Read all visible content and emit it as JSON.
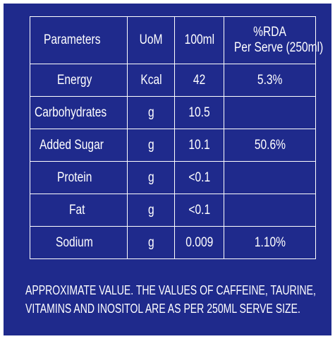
{
  "table": {
    "headers": {
      "parameters": "Parameters",
      "uom": "UoM",
      "per100ml": "100ml",
      "rda_line1": "%RDA",
      "rda_line2": "Per Serve (250ml)"
    },
    "rows": [
      {
        "parameter": "Energy",
        "uom": "Kcal",
        "per100ml": "42",
        "rda": "5.3%"
      },
      {
        "parameter": "Carbohydrates",
        "uom": "g",
        "per100ml": "10.5",
        "rda": ""
      },
      {
        "parameter": "Added Sugar",
        "uom": "g",
        "per100ml": "10.1",
        "rda": "50.6%"
      },
      {
        "parameter": "Protein",
        "uom": "g",
        "per100ml": "<0.1",
        "rda": ""
      },
      {
        "parameter": "Fat",
        "uom": "g",
        "per100ml": "<0.1",
        "rda": ""
      },
      {
        "parameter": "Sodium",
        "uom": "g",
        "per100ml": "0.009",
        "rda": "1.10%"
      }
    ]
  },
  "footnote": {
    "line1": "APPROXIMATE VALUE. THE VALUES OF CAFFEINE, TAURINE,",
    "line2": "VITAMINS AND INOSITOL ARE AS PER 250ML SERVE SIZE."
  },
  "colors": {
    "background": "#1f2a8c",
    "text": "#ffffff"
  }
}
